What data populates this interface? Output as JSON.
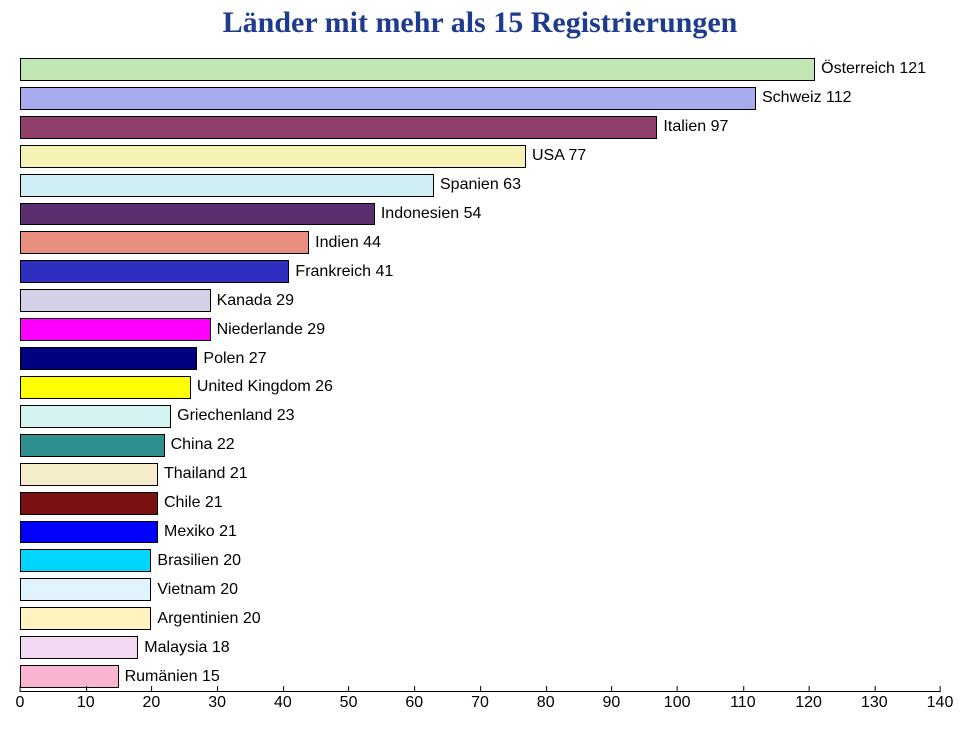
{
  "title": "Länder mit mehr als 15 Registrierungen",
  "title_color": "#1f3b8f",
  "title_fontsize": 30,
  "title_fontfamily": "Times New Roman, Times, serif",
  "background_color": "#ffffff",
  "chart": {
    "type": "bar-horizontal",
    "xmin": 0,
    "xmax": 140,
    "xtick_step": 10,
    "bar_border": "#000000",
    "axis_color": "#000000",
    "label_fontsize": 16,
    "tick_fontsize": 16,
    "bars": [
      {
        "label": "Österreich 121",
        "value": 121,
        "color": "#c1e6b3"
      },
      {
        "label": "Schweiz 112",
        "value": 112,
        "color": "#a7acee"
      },
      {
        "label": "Italien 97",
        "value": 97,
        "color": "#8f3f6a"
      },
      {
        "label": "USA 77",
        "value": 77,
        "color": "#f6f2b5"
      },
      {
        "label": "Spanien 63",
        "value": 63,
        "color": "#cfeff4"
      },
      {
        "label": "Indonesien 54",
        "value": 54,
        "color": "#5b2f6f"
      },
      {
        "label": "Indien 44",
        "value": 44,
        "color": "#e98f80"
      },
      {
        "label": "Frankreich 41",
        "value": 41,
        "color": "#2f2fbf"
      },
      {
        "label": "Kanada 29",
        "value": 29,
        "color": "#d6cfe8"
      },
      {
        "label": "Niederlande 29",
        "value": 29,
        "color": "#ff00ff"
      },
      {
        "label": "Polen 27",
        "value": 27,
        "color": "#000080"
      },
      {
        "label": "United Kingdom 26",
        "value": 26,
        "color": "#ffff00"
      },
      {
        "label": "Griechenland 23",
        "value": 23,
        "color": "#d4f4f4"
      },
      {
        "label": "China 22",
        "value": 22,
        "color": "#2f8f8f"
      },
      {
        "label": "Thailand 21",
        "value": 21,
        "color": "#f5ecc9"
      },
      {
        "label": "Chile 21",
        "value": 21,
        "color": "#7a1010"
      },
      {
        "label": "Mexiko 21",
        "value": 21,
        "color": "#0000ff"
      },
      {
        "label": "Brasilien 20",
        "value": 20,
        "color": "#00d6ff"
      },
      {
        "label": "Vietnam 20",
        "value": 20,
        "color": "#e0f3ff"
      },
      {
        "label": "Argentinien 20",
        "value": 20,
        "color": "#fff4bf"
      },
      {
        "label": "Malaysia 18",
        "value": 18,
        "color": "#f2d9f2"
      },
      {
        "label": "Rumänien 15",
        "value": 15,
        "color": "#f9b4d0"
      }
    ]
  }
}
